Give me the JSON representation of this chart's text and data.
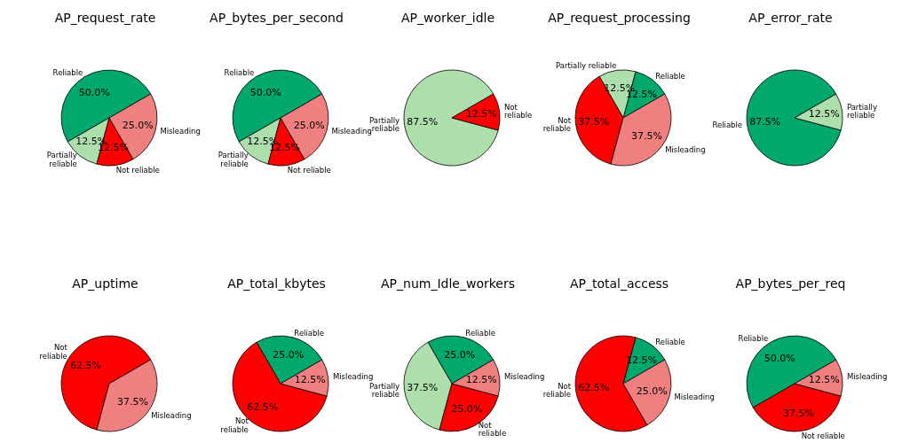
{
  "chart_data": [
    {
      "type": "pie",
      "title": "AP_request_rate",
      "categories": [
        "Reliable",
        "Partially reliable",
        "Not reliable",
        "Misleading"
      ],
      "values": [
        50,
        12.5,
        12.5,
        25
      ],
      "colors": [
        "#00a86b",
        "#addfad",
        "#ff0000",
        "#f08080"
      ],
      "value_labels": [
        "50.0%",
        "12.5%",
        "12.5%",
        "25.0%"
      ]
    },
    {
      "type": "pie",
      "title": "AP_bytes_per_second",
      "categories": [
        "Reliable",
        "Partially reliable",
        "Not reliable",
        "Misleading"
      ],
      "values": [
        50,
        12.5,
        12.5,
        25
      ],
      "colors": [
        "#00a86b",
        "#addfad",
        "#ff0000",
        "#f08080"
      ],
      "value_labels": [
        "50.0%",
        "12.5%",
        "12.5%",
        "25.0%"
      ]
    },
    {
      "type": "pie",
      "title": "AP_worker_idle",
      "categories": [
        "Partially reliable",
        "Not reliable"
      ],
      "values": [
        87.5,
        12.5
      ],
      "colors": [
        "#addfad",
        "#ff0000"
      ],
      "value_labels": [
        "87.5%",
        "12.5%"
      ]
    },
    {
      "type": "pie",
      "title": "AP_request_processing",
      "categories": [
        "Reliable",
        "Partially reliable",
        "Not reliable",
        "Misleading"
      ],
      "values": [
        12.5,
        12.5,
        37.5,
        37.5
      ],
      "colors": [
        "#00a86b",
        "#addfad",
        "#ff0000",
        "#f08080"
      ],
      "value_labels": [
        "12.5%",
        "12.5%",
        "37.5%",
        "37.5%"
      ]
    },
    {
      "type": "pie",
      "title": "AP_error_rate",
      "categories": [
        "Reliable",
        "Partially reliable"
      ],
      "values": [
        87.5,
        12.5
      ],
      "colors": [
        "#00a86b",
        "#addfad"
      ],
      "value_labels": [
        "87.5%",
        "12.5%"
      ]
    },
    {
      "type": "pie",
      "title": "AP_uptime",
      "categories": [
        "Not reliable",
        "Misleading"
      ],
      "values": [
        62.5,
        37.5
      ],
      "colors": [
        "#ff0000",
        "#f08080"
      ],
      "value_labels": [
        "62.5%",
        "37.5%"
      ]
    },
    {
      "type": "pie",
      "title": "AP_total_kbytes",
      "categories": [
        "Reliable",
        "Not reliable",
        "Misleading"
      ],
      "values": [
        25,
        62.5,
        12.5
      ],
      "colors": [
        "#00a86b",
        "#ff0000",
        "#f08080"
      ],
      "value_labels": [
        "25.0%",
        "62.5%",
        "12.5%"
      ]
    },
    {
      "type": "pie",
      "title": "AP_num_Idle_workers",
      "categories": [
        "Reliable",
        "Partially reliable",
        "Not reliable",
        "Misleading"
      ],
      "values": [
        25,
        37.5,
        25,
        12.5
      ],
      "colors": [
        "#00a86b",
        "#addfad",
        "#ff0000",
        "#f08080"
      ],
      "value_labels": [
        "25.0%",
        "37.5%",
        "25.0%",
        "12.5%"
      ]
    },
    {
      "type": "pie",
      "title": "AP_total_access",
      "categories": [
        "Reliable",
        "Not reliable",
        "Misleading"
      ],
      "values": [
        12.5,
        62.5,
        25
      ],
      "colors": [
        "#00a86b",
        "#ff0000",
        "#f08080"
      ],
      "value_labels": [
        "12.5%",
        "62.5%",
        "25.0%"
      ]
    },
    {
      "type": "pie",
      "title": "AP_bytes_per_req",
      "categories": [
        "Reliable",
        "Not reliable",
        "Misleading"
      ],
      "values": [
        50,
        37.5,
        12.5
      ],
      "colors": [
        "#00a86b",
        "#ff0000",
        "#f08080"
      ],
      "value_labels": [
        "50.0%",
        "37.5%",
        "12.5%"
      ]
    }
  ]
}
